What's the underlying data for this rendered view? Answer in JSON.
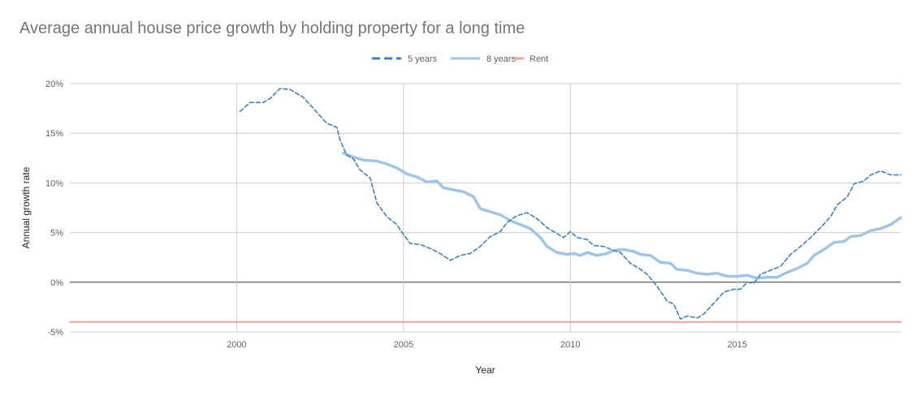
{
  "chart_data": {
    "type": "line",
    "title": "Average annual house price growth by holding property for a long time",
    "xlabel": "Year",
    "ylabel": "Annual growth rate",
    "xlim": [
      1995,
      2019.9
    ],
    "ylim": [
      -5,
      20
    ],
    "x_ticks": [
      2000,
      2005,
      2010,
      2015
    ],
    "x_tick_labels": [
      "2000",
      "2005",
      "2010",
      "2015"
    ],
    "y_ticks": [
      -5,
      0,
      5,
      10,
      15,
      20
    ],
    "y_tick_labels": [
      "-5%",
      "0%",
      "5%",
      "10%",
      "15%",
      "20%"
    ],
    "grid": true,
    "legend_position": "top",
    "series": [
      {
        "name": "5 years",
        "color": "#3d7fc4",
        "style": "dashed",
        "points": [
          [
            2000.1,
            17.2
          ],
          [
            2000.4,
            18.1
          ],
          [
            2000.8,
            18.1
          ],
          [
            2001.0,
            18.5
          ],
          [
            2001.3,
            19.5
          ],
          [
            2001.6,
            19.4
          ],
          [
            2002.0,
            18.6
          ],
          [
            2002.3,
            17.5
          ],
          [
            2002.7,
            16.0
          ],
          [
            2003.0,
            15.6
          ],
          [
            2003.1,
            14.3
          ],
          [
            2003.3,
            12.8
          ],
          [
            2003.5,
            12.4
          ],
          [
            2003.7,
            11.3
          ],
          [
            2004.0,
            10.5
          ],
          [
            2004.2,
            8.0
          ],
          [
            2004.5,
            6.6
          ],
          [
            2004.8,
            5.8
          ],
          [
            2005.0,
            4.8
          ],
          [
            2005.2,
            3.9
          ],
          [
            2005.5,
            3.8
          ],
          [
            2005.8,
            3.4
          ],
          [
            2006.1,
            2.9
          ],
          [
            2006.4,
            2.2
          ],
          [
            2006.7,
            2.7
          ],
          [
            2007.0,
            2.9
          ],
          [
            2007.3,
            3.6
          ],
          [
            2007.6,
            4.6
          ],
          [
            2007.9,
            5.1
          ],
          [
            2008.1,
            6.0
          ],
          [
            2008.4,
            6.7
          ],
          [
            2008.7,
            7.0
          ],
          [
            2009.0,
            6.4
          ],
          [
            2009.3,
            5.5
          ],
          [
            2009.6,
            4.9
          ],
          [
            2009.8,
            4.5
          ],
          [
            2010.0,
            5.1
          ],
          [
            2010.2,
            4.5
          ],
          [
            2010.5,
            4.3
          ],
          [
            2010.7,
            3.7
          ],
          [
            2011.0,
            3.6
          ],
          [
            2011.3,
            3.2
          ],
          [
            2011.5,
            3.0
          ],
          [
            2011.8,
            1.9
          ],
          [
            2012.1,
            1.3
          ],
          [
            2012.3,
            0.8
          ],
          [
            2012.6,
            -0.4
          ],
          [
            2012.9,
            -1.9
          ],
          [
            2013.1,
            -2.2
          ],
          [
            2013.3,
            -3.7
          ],
          [
            2013.5,
            -3.4
          ],
          [
            2013.8,
            -3.6
          ],
          [
            2014.0,
            -3.2
          ],
          [
            2014.3,
            -2.1
          ],
          [
            2014.6,
            -1.0
          ],
          [
            2014.9,
            -0.7
          ],
          [
            2015.1,
            -0.7
          ],
          [
            2015.3,
            0.0
          ],
          [
            2015.5,
            -0.1
          ],
          [
            2015.7,
            0.8
          ],
          [
            2016.0,
            1.2
          ],
          [
            2016.3,
            1.6
          ],
          [
            2016.6,
            2.8
          ],
          [
            2016.9,
            3.6
          ],
          [
            2017.2,
            4.5
          ],
          [
            2017.5,
            5.5
          ],
          [
            2017.8,
            6.6
          ],
          [
            2018.0,
            7.8
          ],
          [
            2018.3,
            8.6
          ],
          [
            2018.5,
            9.9
          ],
          [
            2018.8,
            10.2
          ],
          [
            2019.0,
            10.8
          ],
          [
            2019.3,
            11.2
          ],
          [
            2019.6,
            10.8
          ],
          [
            2019.9,
            10.8
          ]
        ]
      },
      {
        "name": "8 years",
        "color": "#9fc5e8",
        "style": "solid",
        "points": [
          [
            2003.2,
            13.0
          ],
          [
            2003.5,
            12.6
          ],
          [
            2003.8,
            12.3
          ],
          [
            2004.2,
            12.2
          ],
          [
            2004.5,
            11.9
          ],
          [
            2004.8,
            11.5
          ],
          [
            2005.1,
            10.9
          ],
          [
            2005.4,
            10.6
          ],
          [
            2005.7,
            10.1
          ],
          [
            2006.0,
            10.2
          ],
          [
            2006.2,
            9.5
          ],
          [
            2006.5,
            9.3
          ],
          [
            2006.8,
            9.1
          ],
          [
            2007.1,
            8.6
          ],
          [
            2007.3,
            7.4
          ],
          [
            2007.6,
            7.1
          ],
          [
            2007.9,
            6.8
          ],
          [
            2008.2,
            6.2
          ],
          [
            2008.5,
            5.8
          ],
          [
            2008.8,
            5.4
          ],
          [
            2009.1,
            4.5
          ],
          [
            2009.3,
            3.6
          ],
          [
            2009.6,
            3.0
          ],
          [
            2009.9,
            2.8
          ],
          [
            2010.1,
            2.9
          ],
          [
            2010.3,
            2.7
          ],
          [
            2010.5,
            3.0
          ],
          [
            2010.8,
            2.7
          ],
          [
            2011.1,
            2.9
          ],
          [
            2011.3,
            3.2
          ],
          [
            2011.6,
            3.3
          ],
          [
            2011.9,
            3.1
          ],
          [
            2012.1,
            2.8
          ],
          [
            2012.4,
            2.7
          ],
          [
            2012.7,
            2.0
          ],
          [
            2013.0,
            1.9
          ],
          [
            2013.2,
            1.3
          ],
          [
            2013.5,
            1.2
          ],
          [
            2013.8,
            0.9
          ],
          [
            2014.1,
            0.8
          ],
          [
            2014.4,
            0.9
          ],
          [
            2014.7,
            0.6
          ],
          [
            2015.0,
            0.6
          ],
          [
            2015.3,
            0.7
          ],
          [
            2015.6,
            0.4
          ],
          [
            2015.9,
            0.5
          ],
          [
            2016.2,
            0.5
          ],
          [
            2016.5,
            1.0
          ],
          [
            2016.8,
            1.4
          ],
          [
            2017.1,
            1.9
          ],
          [
            2017.3,
            2.7
          ],
          [
            2017.6,
            3.3
          ],
          [
            2017.9,
            4.0
          ],
          [
            2018.2,
            4.1
          ],
          [
            2018.4,
            4.6
          ],
          [
            2018.7,
            4.7
          ],
          [
            2019.0,
            5.2
          ],
          [
            2019.3,
            5.4
          ],
          [
            2019.6,
            5.8
          ],
          [
            2019.9,
            6.5
          ]
        ]
      },
      {
        "name": "Rent",
        "color": "#f4a09c",
        "style": "solid",
        "points": [
          [
            1995,
            -4
          ],
          [
            2019.9,
            -4
          ]
        ]
      }
    ]
  }
}
